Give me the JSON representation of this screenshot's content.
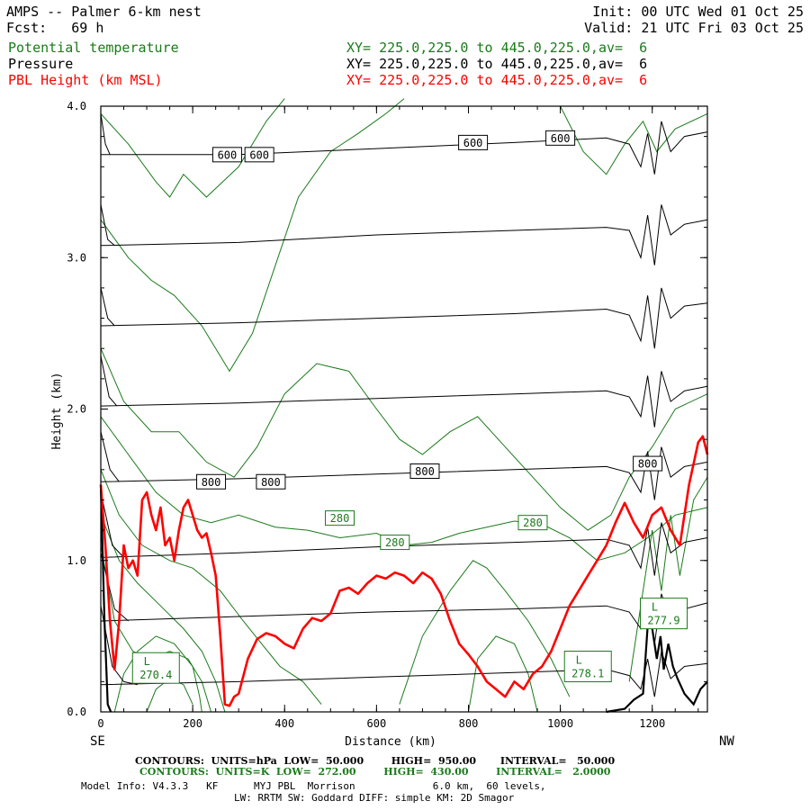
{
  "header": {
    "title": "AMPS -- Palmer 6-km nest",
    "fcst": "Fcst:   69 h",
    "init": "Init: 00 UTC Wed 01 Oct 25",
    "valid": "Valid: 21 UTC Fri 03 Oct 25"
  },
  "fields": [
    {
      "name": "Potential temperature",
      "xy": "XY= 225.0,225.0 to 445.0,225.0,av=  6",
      "color": "#1b7a1b"
    },
    {
      "name": "Pressure",
      "xy": "XY= 225.0,225.0 to 445.0,225.0,av=  6",
      "color": "#000000"
    },
    {
      "name": "PBL Height (km MSL)",
      "xy": "XY= 225.0,225.0 to 445.0,225.0,av=  6",
      "color": "#ff0000"
    }
  ],
  "footer": {
    "line1": "CONTOURS:  UNITS=hPa  LOW=  50.000        HIGH=  950.00       INTERVAL=   50.000",
    "line2": "CONTOURS:  UNITS=K  LOW=  272.00        HIGH=  430.00        INTERVAL=   2.0000",
    "line3": "Model Info: V4.3.3   KF      MYJ PBL  Morrison             6.0 km,  60 levels,",
    "line4": "LW: RRTM SW: Goddard DIFF: simple KM: 2D Smagor"
  },
  "chart_data": {
    "type": "line",
    "xlabel": "Distance (km)",
    "ylabel": "Height (km)",
    "x_end_labels": {
      "left": "SE",
      "right": "NW"
    },
    "xlim": [
      0,
      1320
    ],
    "ylim": [
      0,
      4.0
    ],
    "xticks": [
      "0",
      "200",
      "400",
      "600",
      "800",
      "1000",
      "1200"
    ],
    "yticks": [
      "0.0",
      "1.0",
      "2.0",
      "3.0",
      "4.0"
    ],
    "pressure_labels": [
      {
        "text": "600",
        "x": 275,
        "y": 3.68
      },
      {
        "text": "600",
        "x": 345,
        "y": 3.68
      },
      {
        "text": "600",
        "x": 810,
        "y": 3.76
      },
      {
        "text": "600",
        "x": 1000,
        "y": 3.79
      },
      {
        "text": "800",
        "x": 240,
        "y": 1.52
      },
      {
        "text": "800",
        "x": 370,
        "y": 1.52
      },
      {
        "text": "800",
        "x": 705,
        "y": 1.59
      },
      {
        "text": "800",
        "x": 1190,
        "y": 1.64
      }
    ],
    "theta_labels": [
      {
        "text": "280",
        "x": 520,
        "y": 1.28
      },
      {
        "text": "280",
        "x": 640,
        "y": 1.12
      },
      {
        "text": "280",
        "x": 940,
        "y": 1.25
      }
    ],
    "extrema_labels": [
      {
        "letter": "L",
        "value": "270.4",
        "x": 120,
        "y": 0.29
      },
      {
        "letter": "L",
        "value": "278.1",
        "x": 1060,
        "y": 0.3
      },
      {
        "letter": "L",
        "value": "277.9",
        "x": 1225,
        "y": 0.65
      }
    ],
    "series": [
      {
        "name": "PBL Height (km MSL)",
        "color": "#ff0000",
        "x": [
          0,
          10,
          20,
          30,
          40,
          50,
          60,
          70,
          80,
          90,
          100,
          110,
          120,
          130,
          140,
          150,
          160,
          170,
          180,
          190,
          200,
          210,
          220,
          230,
          240,
          250,
          260,
          270,
          280,
          290,
          300,
          320,
          340,
          360,
          380,
          400,
          420,
          440,
          460,
          480,
          500,
          520,
          540,
          560,
          580,
          600,
          620,
          640,
          660,
          680,
          700,
          720,
          740,
          760,
          780,
          800,
          820,
          840,
          860,
          880,
          900,
          920,
          940,
          960,
          980,
          1000,
          1020,
          1040,
          1060,
          1080,
          1100,
          1120,
          1140,
          1160,
          1180,
          1200,
          1220,
          1240,
          1260,
          1280,
          1300,
          1310,
          1320
        ],
        "y": [
          1.5,
          1.1,
          0.6,
          0.28,
          0.6,
          1.1,
          0.95,
          1.0,
          0.9,
          1.4,
          1.45,
          1.3,
          1.2,
          1.35,
          1.1,
          1.15,
          1.0,
          1.2,
          1.35,
          1.4,
          1.3,
          1.2,
          1.15,
          1.18,
          1.05,
          0.9,
          0.5,
          0.05,
          0.04,
          0.1,
          0.12,
          0.35,
          0.48,
          0.52,
          0.5,
          0.45,
          0.42,
          0.55,
          0.62,
          0.6,
          0.65,
          0.8,
          0.82,
          0.78,
          0.85,
          0.9,
          0.88,
          0.92,
          0.9,
          0.85,
          0.92,
          0.88,
          0.78,
          0.6,
          0.45,
          0.38,
          0.3,
          0.2,
          0.15,
          0.1,
          0.2,
          0.15,
          0.25,
          0.3,
          0.4,
          0.55,
          0.7,
          0.8,
          0.9,
          1.0,
          1.1,
          1.25,
          1.38,
          1.25,
          1.15,
          1.3,
          1.35,
          1.2,
          1.1,
          1.5,
          1.78,
          1.82,
          1.7
        ]
      }
    ]
  }
}
